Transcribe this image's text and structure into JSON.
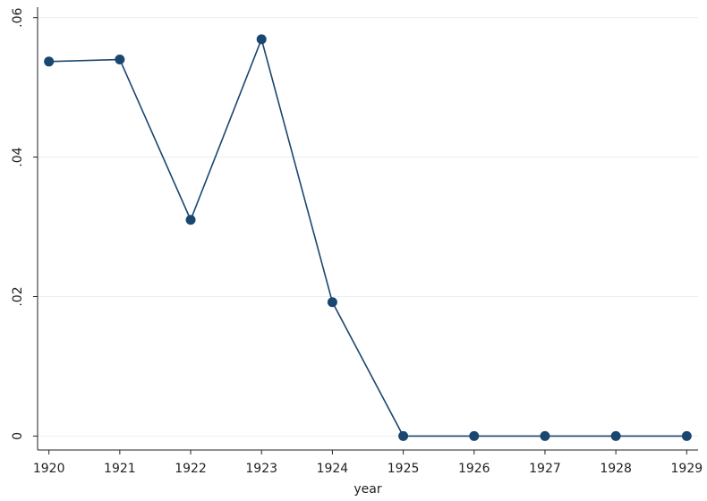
{
  "chart_data": {
    "type": "line",
    "x_label": "year",
    "x": [
      1920,
      1921,
      1922,
      1923,
      1924,
      1925,
      1926,
      1927,
      1928,
      1929
    ],
    "series": [
      {
        "name": "value",
        "color": "#1a476f",
        "values": [
          0.0537,
          0.054,
          0.031,
          0.0569,
          0.0192,
          0,
          0,
          0,
          0,
          0
        ]
      }
    ],
    "xlim": [
      1919.84,
      1929.16
    ],
    "xticks": [
      1920,
      1921,
      1922,
      1923,
      1924,
      1925,
      1926,
      1927,
      1928,
      1929
    ],
    "ylim": [
      -0.002,
      0.0615
    ],
    "yticks": [
      0,
      {
        "value": 0.02,
        "label": ".02"
      },
      {
        "value": 0.04,
        "label": ".04"
      },
      {
        "value": 0.06,
        "label": ".06"
      }
    ],
    "grid": true
  }
}
